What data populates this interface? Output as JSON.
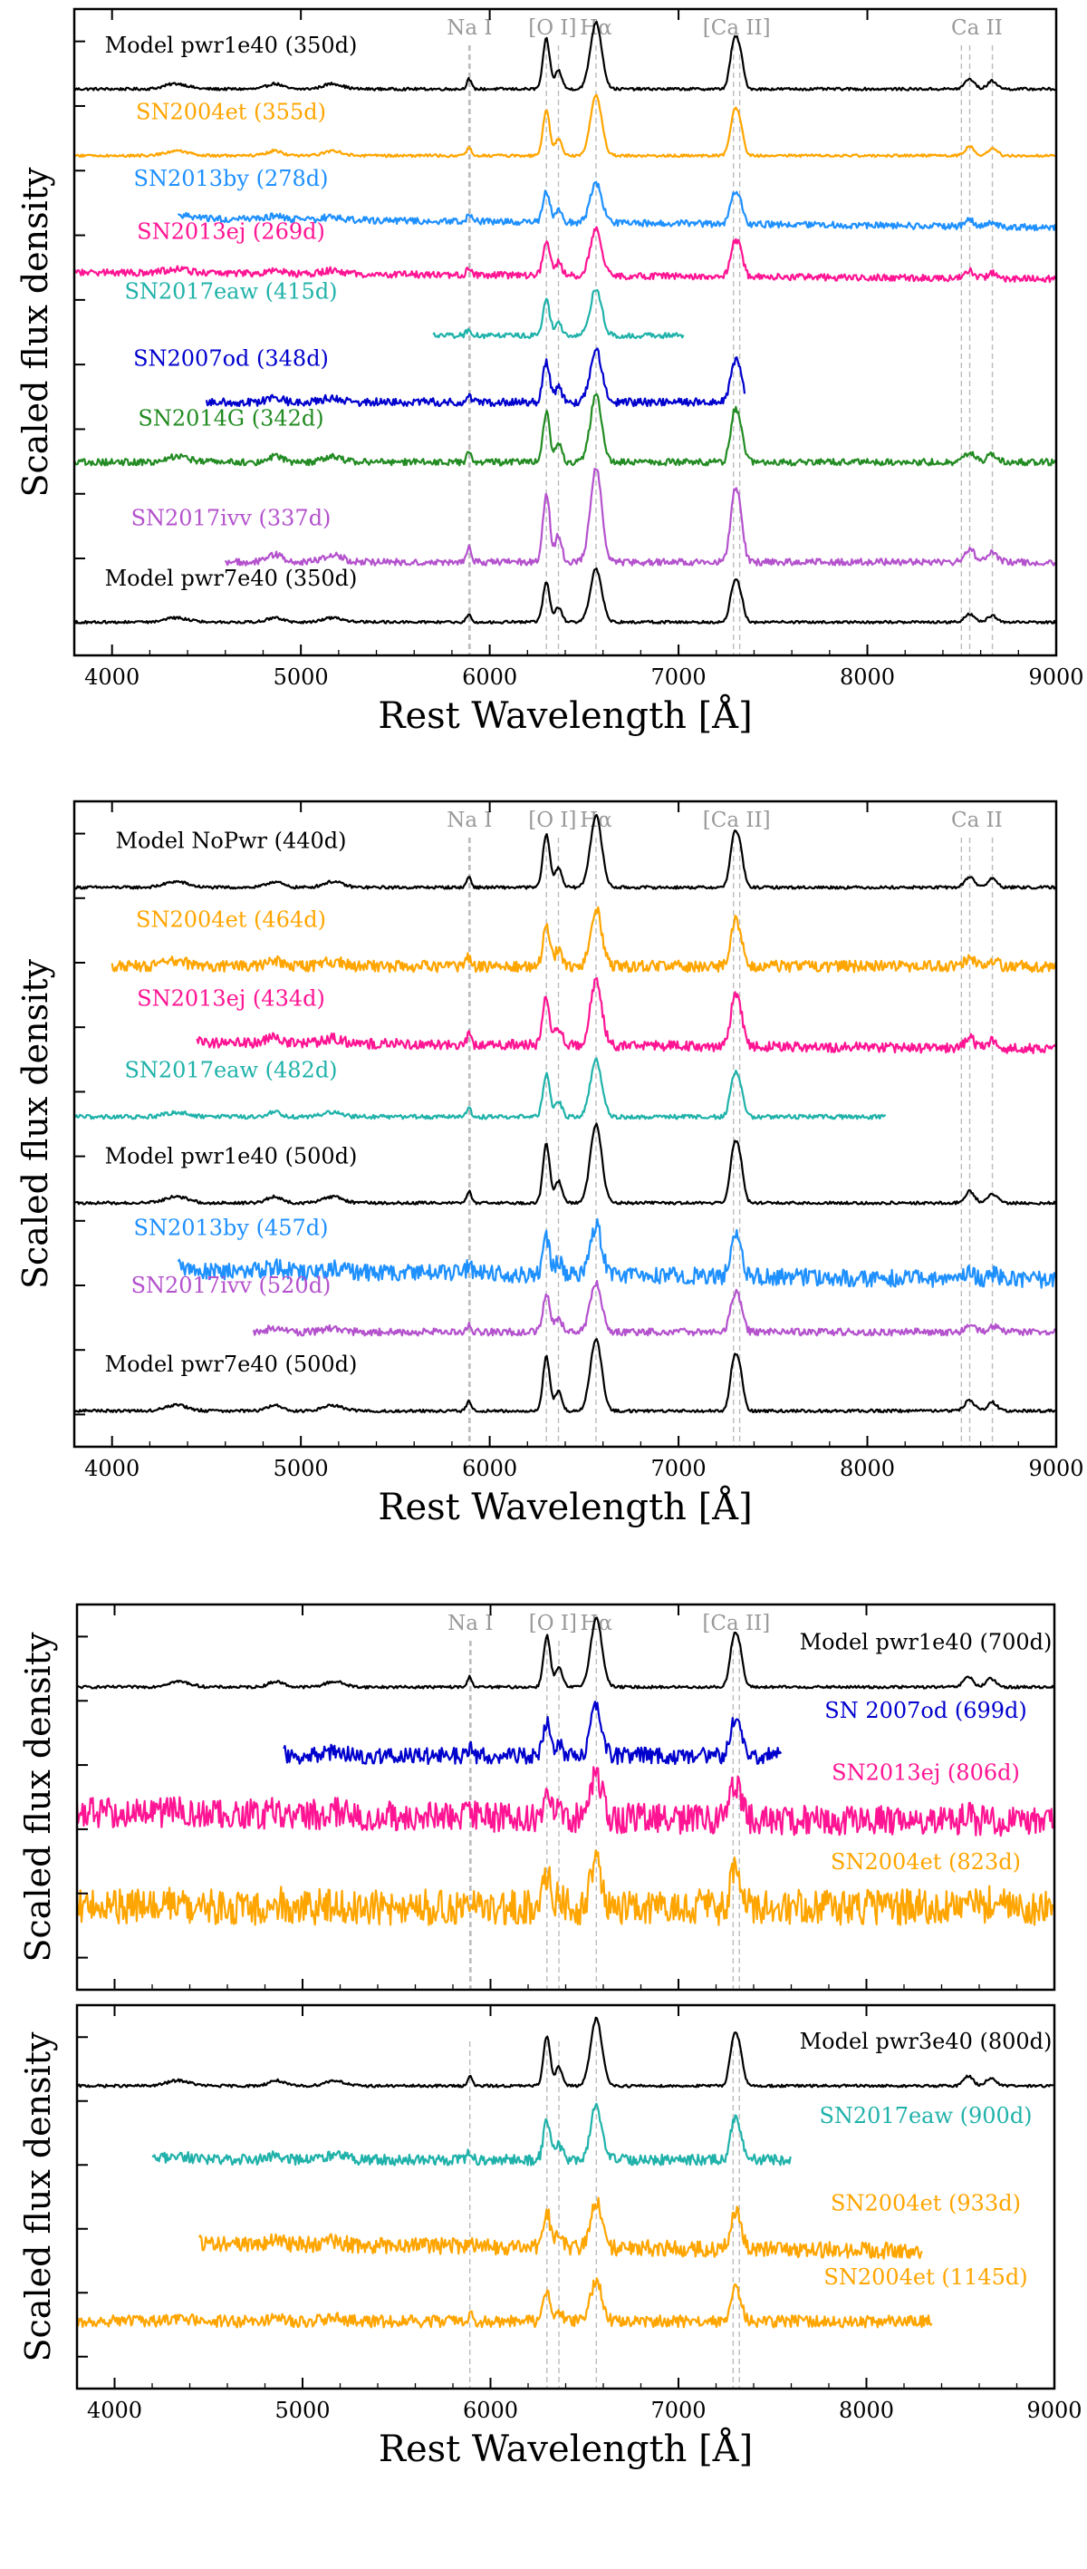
{
  "chart_data": [
    {
      "type": "line",
      "panel": 1,
      "title": "",
      "xlabel": "Rest Wavelength [Å]",
      "ylabel": "Scaled flux density",
      "xlim": [
        3800,
        9000
      ],
      "xticks": [
        "4000",
        "5000",
        "6000",
        "7000",
        "8000",
        "9000"
      ],
      "xtick_values": [
        4000,
        5000,
        6000,
        7000,
        8000,
        9000
      ],
      "grid": false,
      "line_markers": [
        {
          "label": "Na I",
          "x": [
            5890,
            5896
          ]
        },
        {
          "label": "[O I]",
          "x": [
            6300,
            6364
          ]
        },
        {
          "label": "Hα",
          "x": [
            6563
          ]
        },
        {
          "label": "[Ca II]",
          "x": [
            7291,
            7324
          ]
        },
        {
          "label": "Ca II",
          "x": [
            8498,
            8542,
            8662
          ]
        }
      ],
      "series": [
        {
          "name": "Model pwr1e40 (350d)",
          "color": "#000000",
          "offset": 8.0,
          "xmin": 3800,
          "xmax": 9000,
          "noise": 0.02,
          "scale": 1.0,
          "tilt": 0.0
        },
        {
          "name": "SN2004et (355d)",
          "color": "#ffa500",
          "offset": 7.0,
          "xmin": 3800,
          "xmax": 9000,
          "noise": 0.02,
          "scale": 0.9,
          "tilt": 0.0
        },
        {
          "name": "SN2013by (278d)",
          "color": "#1e90ff",
          "offset": 6.0,
          "xmin": 4350,
          "xmax": 9000,
          "noise": 0.05,
          "scale": 0.6,
          "tilt": 0.3
        },
        {
          "name": "SN2013ej (269d)",
          "color": "#ff1493",
          "offset": 5.2,
          "xmin": 3800,
          "xmax": 9000,
          "noise": 0.05,
          "scale": 0.7,
          "tilt": 0.2
        },
        {
          "name": "SN2017eaw (415d)",
          "color": "#20b2aa",
          "offset": 4.3,
          "xmin": 5700,
          "xmax": 7030,
          "noise": 0.04,
          "scale": 0.7,
          "tilt": 0.0
        },
        {
          "name": "SN2007od (348d)",
          "color": "#0000cd",
          "offset": 3.3,
          "xmin": 4500,
          "xmax": 7350,
          "noise": 0.06,
          "scale": 0.8,
          "tilt": 0.0
        },
        {
          "name": "SN2014G (342d)",
          "color": "#228b22",
          "offset": 2.4,
          "xmin": 3800,
          "xmax": 9000,
          "noise": 0.05,
          "scale": 1.0,
          "tilt": 0.0
        },
        {
          "name": "SN2017ivv (337d)",
          "color": "#b452cd",
          "offset": 0.9,
          "xmin": 4600,
          "xmax": 9000,
          "noise": 0.05,
          "scale": 1.4,
          "tilt": 0.0
        },
        {
          "name": "Model pwr7e40 (350d)",
          "color": "#000000",
          "offset": 0.0,
          "xmin": 3800,
          "xmax": 9000,
          "noise": 0.02,
          "scale": 0.8,
          "tilt": 0.0
        }
      ]
    },
    {
      "type": "line",
      "panel": 2,
      "title": "",
      "xlabel": "Rest Wavelength [Å]",
      "ylabel": "Scaled flux density",
      "xlim": [
        3800,
        9000
      ],
      "xticks": [
        "4000",
        "5000",
        "6000",
        "7000",
        "8000",
        "9000"
      ],
      "xtick_values": [
        4000,
        5000,
        6000,
        7000,
        8000,
        9000
      ],
      "grid": false,
      "line_markers": [
        {
          "label": "Na I",
          "x": [
            5890,
            5896
          ]
        },
        {
          "label": "[O I]",
          "x": [
            6300,
            6364
          ]
        },
        {
          "label": "Hα",
          "x": [
            6563
          ]
        },
        {
          "label": "[Ca II]",
          "x": [
            7291,
            7324
          ]
        },
        {
          "label": "Ca II",
          "x": [
            8498,
            8542,
            8662
          ]
        }
      ],
      "series": [
        {
          "name": "Model NoPwr (440d)",
          "color": "#000000",
          "offset": 7.3,
          "xmin": 3800,
          "xmax": 9000,
          "noise": 0.02,
          "scale": 1.0,
          "tilt": 0.0
        },
        {
          "name": "SN2004et (464d)",
          "color": "#ffa500",
          "offset": 6.2,
          "xmin": 4000,
          "xmax": 9000,
          "noise": 0.08,
          "scale": 0.8,
          "tilt": 0.0
        },
        {
          "name": "SN2013ej (434d)",
          "color": "#ff1493",
          "offset": 5.1,
          "xmin": 4450,
          "xmax": 9000,
          "noise": 0.07,
          "scale": 0.9,
          "tilt": 0.2
        },
        {
          "name": "SN2017eaw (482d)",
          "color": "#20b2aa",
          "offset": 4.1,
          "xmin": 3800,
          "xmax": 8100,
          "noise": 0.03,
          "scale": 0.8,
          "tilt": 0.0
        },
        {
          "name": "Model pwr1e40 (500d)",
          "color": "#000000",
          "offset": 2.9,
          "xmin": 3800,
          "xmax": 9000,
          "noise": 0.02,
          "scale": 1.1,
          "tilt": 0.0
        },
        {
          "name": "SN2013by (457d)",
          "color": "#1e90ff",
          "offset": 1.9,
          "xmin": 4350,
          "xmax": 9000,
          "noise": 0.12,
          "scale": 0.7,
          "tilt": 0.3
        },
        {
          "name": "SN2017ivv (520d)",
          "color": "#b452cd",
          "offset": 1.1,
          "xmin": 4750,
          "xmax": 9000,
          "noise": 0.05,
          "scale": 0.7,
          "tilt": 0.0
        },
        {
          "name": "Model pwr7e40 (500d)",
          "color": "#000000",
          "offset": 0.0,
          "xmin": 3800,
          "xmax": 9000,
          "noise": 0.02,
          "scale": 1.0,
          "tilt": 0.0
        }
      ]
    },
    {
      "type": "line",
      "panel": 3,
      "title": "",
      "xlabel": "",
      "ylabel": "Scaled flux density",
      "xlim": [
        3800,
        9000
      ],
      "xticks": [],
      "xtick_values": [
        4000,
        5000,
        6000,
        7000,
        8000,
        9000
      ],
      "grid": false,
      "line_markers": [
        {
          "label": "Na I",
          "x": [
            5890,
            5896
          ]
        },
        {
          "label": "[O I]",
          "x": [
            6300,
            6364
          ]
        },
        {
          "label": "Hα",
          "x": [
            6563
          ]
        },
        {
          "label": "[Ca II]",
          "x": [
            7291,
            7324
          ]
        }
      ],
      "series": [
        {
          "name": "Model pwr1e40 (700d)",
          "color": "#000000",
          "offset": 3.9,
          "xmin": 3800,
          "xmax": 9000,
          "noise": 0.02,
          "scale": 1.0,
          "tilt": 0.0
        },
        {
          "name": "SN 2007od (699d)",
          "color": "#0000cd",
          "offset": 2.9,
          "xmin": 4900,
          "xmax": 7550,
          "noise": 0.12,
          "scale": 0.7,
          "tilt": 0.0
        },
        {
          "name": "SN2013ej (806d)",
          "color": "#ff1493",
          "offset": 2.0,
          "xmin": 3800,
          "xmax": 9000,
          "noise": 0.22,
          "scale": 0.6,
          "tilt": 0.3
        },
        {
          "name": "SN2004et (823d)",
          "color": "#ffa500",
          "offset": 0.7,
          "xmin": 3800,
          "xmax": 9000,
          "noise": 0.26,
          "scale": 0.6,
          "tilt": 0.0
        }
      ]
    },
    {
      "type": "line",
      "panel": 4,
      "title": "",
      "xlabel": "Rest Wavelength [Å]",
      "ylabel": "Scaled flux density",
      "xlim": [
        3800,
        9000
      ],
      "xticks": [
        "4000",
        "5000",
        "6000",
        "7000",
        "8000",
        "9000"
      ],
      "xtick_values": [
        4000,
        5000,
        6000,
        7000,
        8000,
        9000
      ],
      "grid": false,
      "line_markers": [
        {
          "label": "",
          "x": [
            5890,
            6300,
            6364,
            6563,
            7291,
            7324
          ]
        }
      ],
      "series": [
        {
          "name": "Model pwr3e40 (800d)",
          "color": "#000000",
          "offset": 4.0,
          "xmin": 3800,
          "xmax": 9000,
          "noise": 0.02,
          "scale": 1.0,
          "tilt": 0.0
        },
        {
          "name": "SN2017eaw (900d)",
          "color": "#20b2aa",
          "offset": 2.9,
          "xmin": 4200,
          "xmax": 7600,
          "noise": 0.08,
          "scale": 0.8,
          "tilt": 0.0
        },
        {
          "name": "SN2004et (933d)",
          "color": "#ffa500",
          "offset": 1.6,
          "xmin": 4450,
          "xmax": 8300,
          "noise": 0.12,
          "scale": 0.7,
          "tilt": 0.3
        },
        {
          "name": "SN2004et (1145d)",
          "color": "#ffa500",
          "offset": 0.5,
          "xmin": 3800,
          "xmax": 8350,
          "noise": 0.09,
          "scale": 0.6,
          "tilt": 0.0
        }
      ]
    }
  ]
}
